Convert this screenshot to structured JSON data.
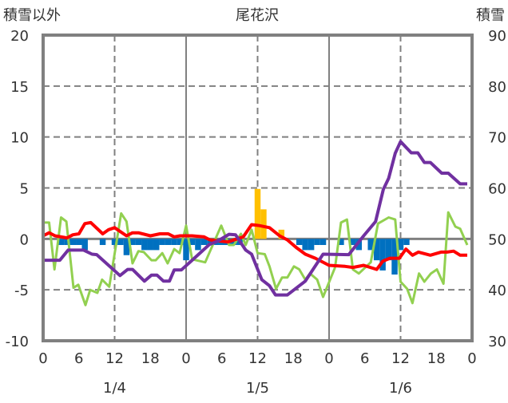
{
  "chart_data": {
    "type": "bar+line",
    "title": "尾花沢",
    "ylabel_left": "積雪以外",
    "ylabel_right": "積雪",
    "ylim_left": [
      -10,
      20
    ],
    "ylim_right": [
      30,
      90
    ],
    "yticks_left": [
      "20",
      "15",
      "10",
      "5",
      "0",
      "-5",
      "-10"
    ],
    "yticks_right": [
      "90",
      "80",
      "70",
      "60",
      "50",
      "40",
      "30"
    ],
    "xlim_hours": [
      0,
      72
    ],
    "xticks": [
      "0",
      "6",
      "12",
      "18",
      "0",
      "6",
      "12",
      "18",
      "0",
      "6",
      "12",
      "18",
      "0"
    ],
    "date_labels": [
      {
        "hour": 12,
        "label": "1/4"
      },
      {
        "hour": 36,
        "label": "1/5"
      },
      {
        "hour": 60,
        "label": "1/6"
      }
    ],
    "colors": {
      "blue_bars": "#0070c0",
      "orange_bars": "#ffc000",
      "red_line": "#ff0000",
      "purple_line": "#7030a0",
      "green_line": "#92d050",
      "grid": "#808080"
    },
    "bars": [
      [
        3,
        -0.6
      ],
      [
        4,
        -0.6
      ],
      [
        5,
        -0.6
      ],
      [
        6,
        -0.6
      ],
      [
        7,
        -1.1
      ],
      [
        10,
        -0.6
      ],
      [
        12,
        -0.6
      ],
      [
        13,
        -0.6
      ],
      [
        14,
        -1.6
      ],
      [
        15,
        -0.6
      ],
      [
        16,
        -0.6
      ],
      [
        17,
        -1.1
      ],
      [
        18,
        -1.1
      ],
      [
        19,
        -1.1
      ],
      [
        20,
        -0.6
      ],
      [
        21,
        -0.6
      ],
      [
        22,
        -0.6
      ],
      [
        23,
        -0.6
      ],
      [
        24,
        -2.1
      ],
      [
        25,
        -0.6
      ],
      [
        26,
        -1.1
      ],
      [
        27,
        -0.6
      ],
      [
        28,
        -0.6
      ],
      [
        29,
        -0.6
      ],
      [
        30,
        -0.6
      ],
      [
        31,
        -0.6
      ],
      [
        32,
        -0.6
      ],
      [
        33,
        -0.6
      ],
      [
        36,
        4.9
      ],
      [
        37,
        2.9
      ],
      [
        40,
        0.9
      ],
      [
        43,
        -0.6
      ],
      [
        44,
        -1.1
      ],
      [
        45,
        -1.1
      ],
      [
        46,
        -0.6
      ],
      [
        47,
        -0.6
      ],
      [
        50,
        -0.6
      ],
      [
        52,
        -0.6
      ],
      [
        53,
        -1.1
      ],
      [
        55,
        -1.1
      ],
      [
        56,
        -2.1
      ],
      [
        57,
        -3.1
      ],
      [
        58,
        -2.1
      ],
      [
        59,
        -3.5
      ],
      [
        60,
        -1.1
      ],
      [
        61,
        -0.6
      ]
    ],
    "series": [
      {
        "name": "red",
        "axis": "left",
        "points": [
          [
            0,
            0.3
          ],
          [
            1,
            0.6
          ],
          [
            2,
            0.3
          ],
          [
            4,
            0.1
          ],
          [
            5,
            0.4
          ],
          [
            6,
            0.5
          ],
          [
            7,
            1.5
          ],
          [
            8,
            1.6
          ],
          [
            10,
            0.5
          ],
          [
            11,
            0.9
          ],
          [
            12,
            1.1
          ],
          [
            14,
            0.3
          ],
          [
            15,
            0.6
          ],
          [
            16,
            0.6
          ],
          [
            18,
            0.3
          ],
          [
            19.6,
            0.5
          ],
          [
            21,
            0.5
          ],
          [
            22,
            0.2
          ],
          [
            23,
            0.3
          ],
          [
            25,
            0.3
          ],
          [
            27,
            0.2
          ],
          [
            28,
            -0.1
          ],
          [
            31,
            -0.3
          ],
          [
            33.6,
            0.2
          ],
          [
            35,
            1.4
          ],
          [
            36.3,
            1.3
          ],
          [
            38,
            1.1
          ],
          [
            39.7,
            0.3
          ],
          [
            41,
            -0.1
          ],
          [
            42.6,
            -0.9
          ],
          [
            44,
            -1.5
          ],
          [
            45.7,
            -1.9
          ],
          [
            48,
            -2.6
          ],
          [
            50.7,
            -2.7
          ],
          [
            52,
            -2.8
          ],
          [
            53.8,
            -2.6
          ],
          [
            56,
            -3.0
          ],
          [
            57,
            -2.2
          ],
          [
            58.2,
            -1.9
          ],
          [
            59.8,
            -1.9
          ],
          [
            60.9,
            -1.0
          ],
          [
            62,
            -1.6
          ],
          [
            63,
            -1.3
          ],
          [
            65,
            -1.6
          ],
          [
            66.8,
            -1.3
          ],
          [
            67.8,
            -1.3
          ],
          [
            68.9,
            -1.2
          ],
          [
            70,
            -1.6
          ],
          [
            71.2,
            -1.6
          ]
        ]
      },
      {
        "name": "purple",
        "axis": "right",
        "points": [
          [
            0,
            45.8
          ],
          [
            2.8,
            45.8
          ],
          [
            4.2,
            47.8
          ],
          [
            6.8,
            47.8
          ],
          [
            8.2,
            47.0
          ],
          [
            9,
            46.9
          ],
          [
            12.9,
            42.8
          ],
          [
            14.2,
            44.0
          ],
          [
            15,
            44.0
          ],
          [
            17,
            41.7
          ],
          [
            18.2,
            42.9
          ],
          [
            19.1,
            42.9
          ],
          [
            20.2,
            41.7
          ],
          [
            21.2,
            41.7
          ],
          [
            22,
            43.9
          ],
          [
            23.2,
            43.9
          ],
          [
            25,
            45.8
          ],
          [
            27.9,
            48.9
          ],
          [
            29.2,
            49.5
          ],
          [
            31.2,
            50.9
          ],
          [
            32.3,
            50.8
          ],
          [
            34,
            47.8
          ],
          [
            35,
            47.0
          ],
          [
            36.7,
            42.0
          ],
          [
            38,
            40.8
          ],
          [
            39,
            39.0
          ],
          [
            41,
            39.0
          ],
          [
            44,
            41.7
          ],
          [
            47,
            47.0
          ],
          [
            51.3,
            46.9
          ],
          [
            53.8,
            50.6
          ],
          [
            55.8,
            53.4
          ],
          [
            57.1,
            59.7
          ],
          [
            58,
            61.9
          ],
          [
            59.1,
            66.8
          ],
          [
            60,
            69.1
          ],
          [
            61.8,
            66.9
          ],
          [
            62.9,
            66.9
          ],
          [
            64,
            65.0
          ],
          [
            65,
            65.0
          ],
          [
            66.9,
            62.9
          ],
          [
            68,
            62.9
          ],
          [
            70,
            60.8
          ],
          [
            71.2,
            60.8
          ]
        ]
      },
      {
        "name": "green",
        "axis": "left",
        "points": [
          [
            0,
            1.6
          ],
          [
            1,
            1.6
          ],
          [
            1.9,
            -3.0
          ],
          [
            3,
            2.1
          ],
          [
            3.9,
            1.7
          ],
          [
            5.1,
            -4.8
          ],
          [
            5.9,
            -4.5
          ],
          [
            7.1,
            -6.5
          ],
          [
            7.9,
            -5.0
          ],
          [
            9.1,
            -5.3
          ],
          [
            9.9,
            -4.0
          ],
          [
            11.1,
            -4.7
          ],
          [
            13.1,
            2.5
          ],
          [
            14,
            1.7
          ],
          [
            15,
            -2.4
          ],
          [
            16,
            -1.2
          ],
          [
            16.9,
            -1.3
          ],
          [
            18.2,
            -2.1
          ],
          [
            18.9,
            -2.1
          ],
          [
            20,
            -1.4
          ],
          [
            20.9,
            -2.4
          ],
          [
            22,
            -1.0
          ],
          [
            22.9,
            -1.4
          ],
          [
            24,
            1.3
          ],
          [
            25,
            -2.0
          ],
          [
            27.2,
            -2.3
          ],
          [
            29.9,
            1.3
          ],
          [
            31.2,
            -0.6
          ],
          [
            32,
            -0.6
          ],
          [
            33.2,
            0.5
          ],
          [
            34,
            -0.6
          ],
          [
            35,
            0.9
          ],
          [
            36,
            -1.4
          ],
          [
            37.2,
            -1.5
          ],
          [
            38,
            -2.7
          ],
          [
            39.1,
            -4.9
          ],
          [
            40.1,
            -3.8
          ],
          [
            41,
            -3.8
          ],
          [
            42.1,
            -2.7
          ],
          [
            43,
            -3.0
          ],
          [
            44,
            -4.0
          ],
          [
            44.8,
            -3.4
          ],
          [
            46,
            -4.0
          ],
          [
            47,
            -5.7
          ],
          [
            49,
            -2.8
          ],
          [
            50,
            1.6
          ],
          [
            51,
            1.9
          ],
          [
            52,
            -3.0
          ],
          [
            53,
            -3.4
          ],
          [
            55,
            -2.3
          ],
          [
            56.2,
            1.5
          ],
          [
            58,
            2.1
          ],
          [
            59.1,
            1.9
          ],
          [
            60,
            -4.2
          ],
          [
            61.1,
            -4.9
          ],
          [
            62,
            -6.3
          ],
          [
            63.1,
            -3.4
          ],
          [
            64,
            -4.2
          ],
          [
            65.1,
            -3.4
          ],
          [
            66.1,
            -3.0
          ],
          [
            67.2,
            -4.4
          ],
          [
            68,
            2.6
          ],
          [
            69.2,
            1.2
          ],
          [
            70,
            1.0
          ],
          [
            71.2,
            -0.6
          ]
        ]
      }
    ]
  }
}
